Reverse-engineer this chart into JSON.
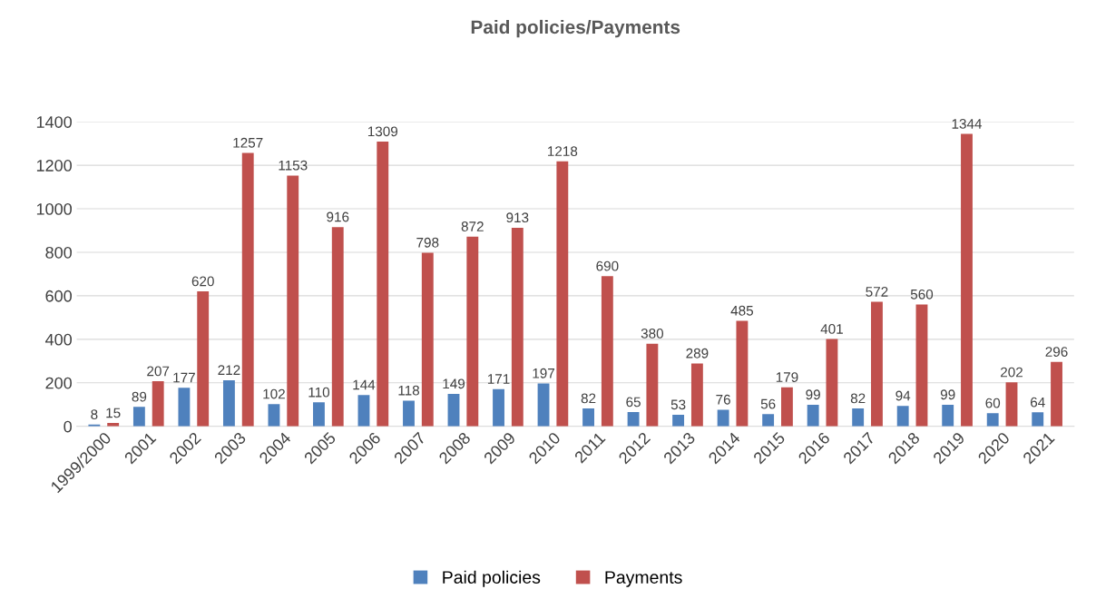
{
  "chart_data": {
    "type": "bar",
    "title": "Paid policies/Payments",
    "categories": [
      "1999/2000",
      "2001",
      "2002",
      "2003",
      "2004",
      "2005",
      "2006",
      "2007",
      "2008",
      "2009",
      "2010",
      "2011",
      "2012",
      "2013",
      "2014",
      "2015",
      "2016",
      "2017",
      "2018",
      "2019",
      "2020",
      "2021"
    ],
    "series": [
      {
        "name": "Paid policies",
        "color": "#4f81bd",
        "values": [
          8,
          89,
          177,
          212,
          102,
          110,
          144,
          118,
          149,
          171,
          197,
          82,
          65,
          53,
          76,
          56,
          99,
          82,
          94,
          99,
          60,
          64
        ]
      },
      {
        "name": "Payments",
        "color": "#c0504d",
        "values": [
          15,
          207,
          620,
          1257,
          1153,
          916,
          1309,
          798,
          872,
          913,
          1218,
          690,
          380,
          289,
          485,
          179,
          401,
          572,
          560,
          1344,
          202,
          296
        ]
      }
    ],
    "ylim": [
      0,
      1400
    ],
    "yticks": [
      0,
      200,
      400,
      600,
      800,
      1000,
      1200,
      1400
    ],
    "grid": "y",
    "legend": "bottom",
    "data_labels": true
  }
}
